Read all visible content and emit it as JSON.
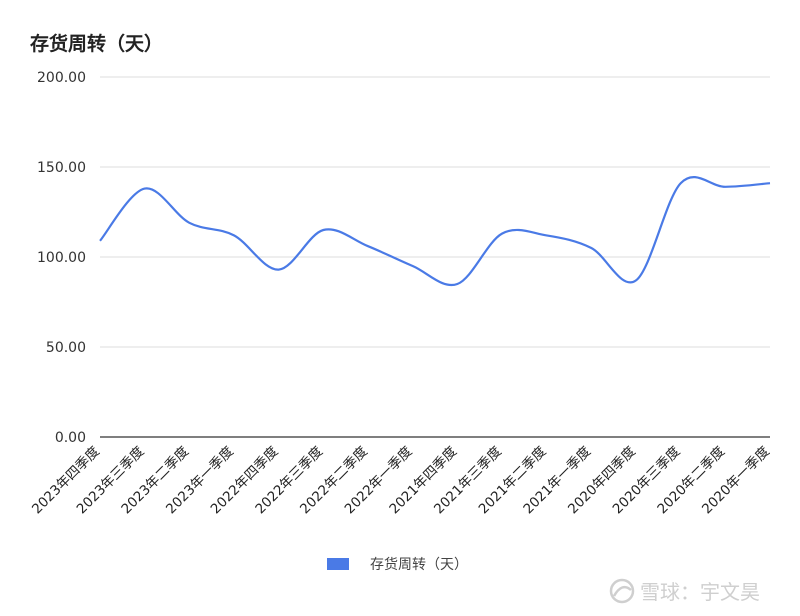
{
  "chart_data": {
    "type": "line",
    "title": "存货周转（天）",
    "xlabel": "",
    "ylabel": "",
    "categories": [
      "2023年四季度",
      "2023年三季度",
      "2023年二季度",
      "2023年一季度",
      "2022年四季度",
      "2022年三季度",
      "2022年二季度",
      "2022年一季度",
      "2021年四季度",
      "2021年三季度",
      "2021年二季度",
      "2021年一季度",
      "2020年四季度",
      "2020年三季度",
      "2020年二季度",
      "2020年一季度"
    ],
    "series": [
      {
        "name": "存货周转（天）",
        "color": "#4a7ae6",
        "values": [
          109,
          138,
          119,
          112,
          93,
          115,
          106,
          95,
          85,
          113,
          112,
          105,
          87,
          141,
          139,
          141
        ]
      }
    ],
    "yticks": [
      "0.00",
      "50.00",
      "100.00",
      "150.00",
      "200.00"
    ],
    "ylim": [
      0,
      200
    ],
    "grid": true,
    "legend_position": "bottom"
  },
  "watermark": {
    "text": "雪球：宇文昊",
    "icon": "snowball-logo-icon"
  }
}
